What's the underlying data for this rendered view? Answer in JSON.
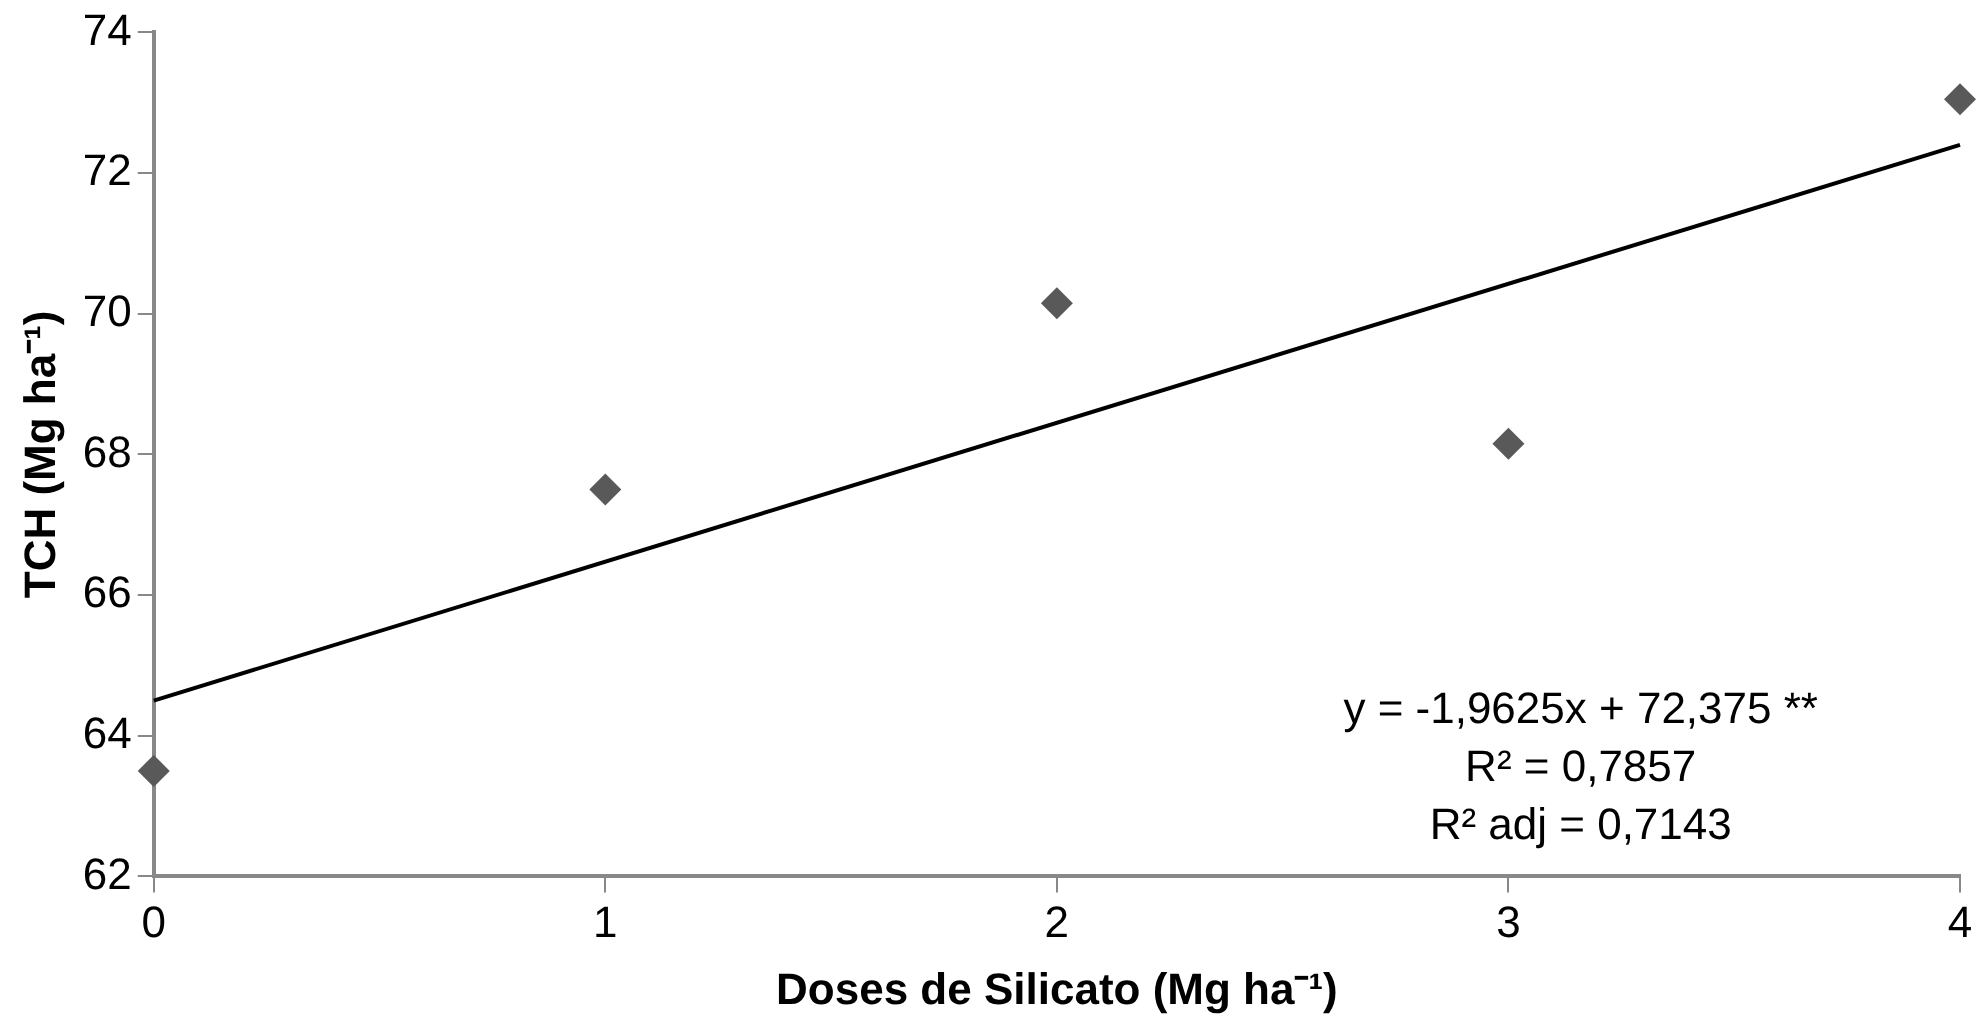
{
  "chart_data": {
    "type": "scatter",
    "xlabel": "Doses de Silicato (Mg ha⁻¹)",
    "ylabel": "TCH (Mg ha⁻¹)",
    "x": [
      0,
      1,
      2,
      3,
      4
    ],
    "series": [
      {
        "color": "#595959",
        "marker": "diamond",
        "values": [
          63.5,
          67.5,
          70.15,
          68.15,
          73.05
        ]
      },
      {
        "type": "line",
        "color": "#000000",
        "marker": "none",
        "x": [
          0,
          4
        ],
        "values": [
          64.5,
          72.4
        ]
      }
    ],
    "xlim": [
      0,
      4
    ],
    "xticks": [
      0,
      1,
      2,
      3,
      4
    ],
    "ylim": [
      62,
      74
    ],
    "yticks": [
      62,
      64,
      66,
      68,
      70,
      72,
      74
    ],
    "grid": false,
    "legend": false,
    "annotations": [
      "y = -1,9625x + 72,375 **",
      "R² = 0,7857",
      "R² adj = 0,7143"
    ]
  }
}
